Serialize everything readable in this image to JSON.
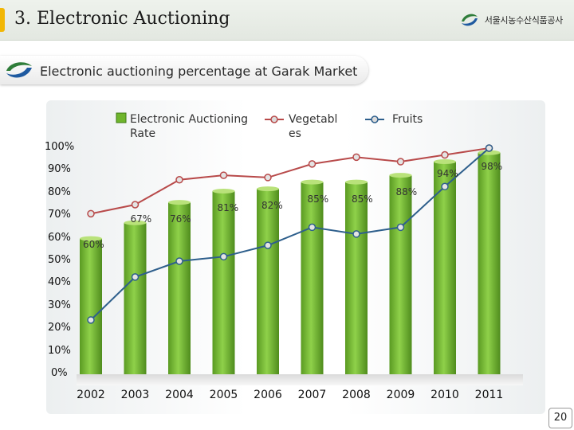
{
  "header": {
    "title": "3. Electronic Auctioning",
    "logo_text": "서울시농수산식품공사"
  },
  "subtitle": "Electronic auctioning percentage at Garak Market",
  "legend": {
    "rate": "Electronic Auctioning Rate",
    "vegetables": "Vegetabl es",
    "fruits": "Fruits"
  },
  "colors": {
    "bar": "#6fb52c",
    "bar_light": "#b9e27a",
    "vegetables_line": "#b84a4a",
    "fruits_line": "#2e5f8c"
  },
  "chart_data": {
    "type": "bar",
    "title": "Electronic auctioning percentage at Garak Market",
    "xlabel": "",
    "ylabel": "",
    "ylim": [
      0,
      100
    ],
    "categories": [
      "2002",
      "2003",
      "2004",
      "2005",
      "2006",
      "2007",
      "2008",
      "2009",
      "2010",
      "2011"
    ],
    "y_ticks": [
      "0%",
      "10%",
      "20%",
      "30%",
      "40%",
      "50%",
      "60%",
      "70%",
      "80%",
      "90%",
      "100%"
    ],
    "series": [
      {
        "name": "Electronic Auctioning Rate",
        "type": "bar",
        "values": [
          60,
          67,
          76,
          81,
          82,
          85,
          85,
          88,
          94,
          98
        ],
        "labels": [
          "60%",
          "67%",
          "76%",
          "81%",
          "82%",
          "85%",
          "85%",
          "88%",
          "94%",
          "98%"
        ]
      },
      {
        "name": "Vegetables",
        "type": "line",
        "values": [
          71,
          75,
          86,
          88,
          87,
          93,
          96,
          94,
          97,
          100
        ]
      },
      {
        "name": "Fruits",
        "type": "line",
        "values": [
          24,
          43,
          50,
          52,
          57,
          65,
          62,
          65,
          83,
          100
        ]
      }
    ]
  },
  "page_number": "20"
}
